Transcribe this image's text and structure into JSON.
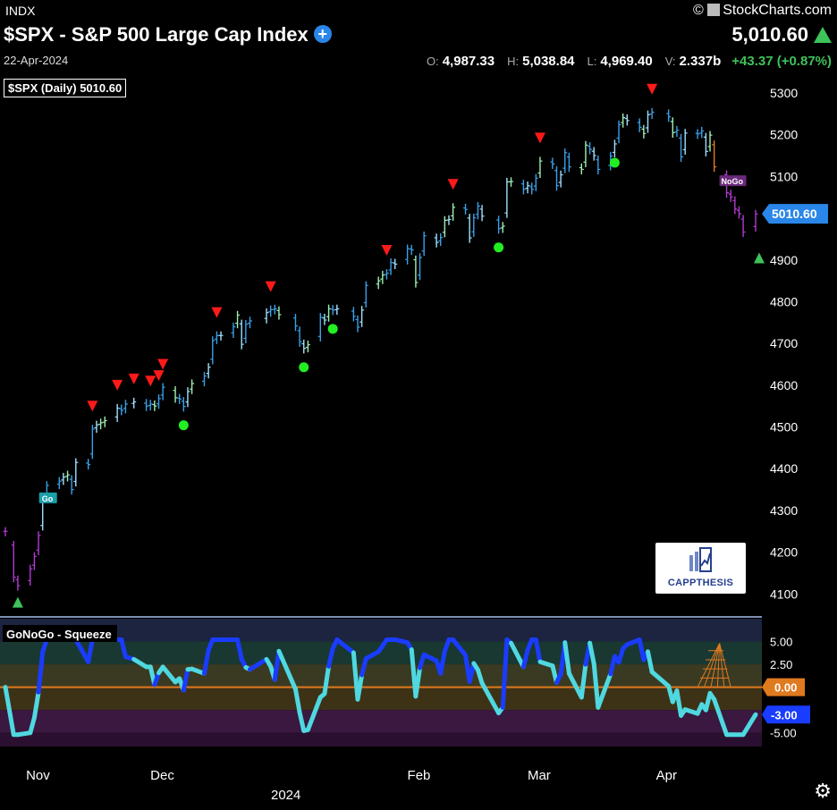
{
  "header": {
    "exchange": "INDX",
    "title": "$SPX - S&P 500 Large Cap Index",
    "date": "22-Apr-2024",
    "brand": "StockCharts.com",
    "last_price": "5,010.60",
    "ohlc": [
      {
        "key": "O:",
        "value": "4,987.33"
      },
      {
        "key": "H:",
        "value": "5,038.84"
      },
      {
        "key": "L:",
        "value": "4,969.40"
      },
      {
        "key": "V:",
        "value": "2.337b"
      }
    ],
    "change": "+43.37 (+0.87%)",
    "chart_label": "$SPX (Daily) 5010.60"
  },
  "logo": {
    "text": "CAPPTHESIS"
  },
  "colors": {
    "bg": "#000000",
    "up": "#3ec25a",
    "red_marker": "#ff1a1a",
    "green_dot": "#22ee22",
    "price_tag": "#2a86e8",
    "squeeze_blue": "#1a3cff",
    "squeeze_cyan": "#4fd8e0",
    "zero_line": "#e07a1f"
  },
  "chart_data": [
    {
      "type": "line",
      "panel": "price",
      "series_name": "$SPX (Daily)",
      "y_ticks": [
        4100,
        4200,
        4300,
        4400,
        4500,
        4600,
        4700,
        4800,
        4900,
        5000,
        5100,
        5200,
        5300
      ],
      "ylim": [
        4060,
        5330
      ],
      "x_ticks": [
        {
          "label": "Nov",
          "date": "2023-11-01"
        },
        {
          "label": "Dec",
          "date": "2023-12-01"
        },
        {
          "label": "Feb",
          "date": "2024-02-01"
        },
        {
          "label": "Mar",
          "date": "2024-03-01"
        },
        {
          "label": "Apr",
          "date": "2024-04-01"
        }
      ],
      "year_label": "2024",
      "last_value_tag": "5010.60",
      "go_label": "Go",
      "nogo_label": "NoGo",
      "closes": [
        {
          "date": "2023-10-24",
          "c": 4250
        },
        {
          "date": "2023-10-26",
          "c": 4140
        },
        {
          "date": "2023-10-27",
          "c": 4120
        },
        {
          "date": "2023-10-30",
          "c": 4160
        },
        {
          "date": "2023-10-31",
          "c": 4190
        },
        {
          "date": "2023-11-01",
          "c": 4240
        },
        {
          "date": "2023-11-02",
          "c": 4320
        },
        {
          "date": "2023-11-03",
          "c": 4360
        },
        {
          "date": "2023-11-06",
          "c": 4370
        },
        {
          "date": "2023-11-07",
          "c": 4380
        },
        {
          "date": "2023-11-08",
          "c": 4385
        },
        {
          "date": "2023-11-09",
          "c": 4350
        },
        {
          "date": "2023-11-10",
          "c": 4415
        },
        {
          "date": "2023-11-13",
          "c": 4410
        },
        {
          "date": "2023-11-14",
          "c": 4495
        },
        {
          "date": "2023-11-15",
          "c": 4505
        },
        {
          "date": "2023-11-16",
          "c": 4510
        },
        {
          "date": "2023-11-17",
          "c": 4515
        },
        {
          "date": "2023-11-20",
          "c": 4545
        },
        {
          "date": "2023-11-21",
          "c": 4540
        },
        {
          "date": "2023-11-22",
          "c": 4555
        },
        {
          "date": "2023-11-24",
          "c": 4560
        },
        {
          "date": "2023-11-27",
          "c": 4550
        },
        {
          "date": "2023-11-28",
          "c": 4555
        },
        {
          "date": "2023-11-29",
          "c": 4550
        },
        {
          "date": "2023-11-30",
          "c": 4568
        },
        {
          "date": "2023-12-01",
          "c": 4595
        },
        {
          "date": "2023-12-04",
          "c": 4570
        },
        {
          "date": "2023-12-05",
          "c": 4567
        },
        {
          "date": "2023-12-06",
          "c": 4549
        },
        {
          "date": "2023-12-07",
          "c": 4585
        },
        {
          "date": "2023-12-08",
          "c": 4604
        },
        {
          "date": "2023-12-11",
          "c": 4622
        },
        {
          "date": "2023-12-12",
          "c": 4643
        },
        {
          "date": "2023-12-13",
          "c": 4707
        },
        {
          "date": "2023-12-14",
          "c": 4719
        },
        {
          "date": "2023-12-15",
          "c": 4719
        },
        {
          "date": "2023-12-18",
          "c": 4740
        },
        {
          "date": "2023-12-19",
          "c": 4768
        },
        {
          "date": "2023-12-20",
          "c": 4698
        },
        {
          "date": "2023-12-21",
          "c": 4746
        },
        {
          "date": "2023-12-22",
          "c": 4754
        },
        {
          "date": "2023-12-26",
          "c": 4774
        },
        {
          "date": "2023-12-27",
          "c": 4781
        },
        {
          "date": "2023-12-28",
          "c": 4783
        },
        {
          "date": "2023-12-29",
          "c": 4769
        },
        {
          "date": "2024-01-02",
          "c": 4742
        },
        {
          "date": "2024-01-03",
          "c": 4704
        },
        {
          "date": "2024-01-04",
          "c": 4688
        },
        {
          "date": "2024-01-05",
          "c": 4697
        },
        {
          "date": "2024-01-08",
          "c": 4763
        },
        {
          "date": "2024-01-09",
          "c": 4756
        },
        {
          "date": "2024-01-10",
          "c": 4783
        },
        {
          "date": "2024-01-11",
          "c": 4780
        },
        {
          "date": "2024-01-12",
          "c": 4783
        },
        {
          "date": "2024-01-16",
          "c": 4765
        },
        {
          "date": "2024-01-17",
          "c": 4739
        },
        {
          "date": "2024-01-18",
          "c": 4780
        },
        {
          "date": "2024-01-19",
          "c": 4839
        },
        {
          "date": "2024-01-22",
          "c": 4850
        },
        {
          "date": "2024-01-23",
          "c": 4864
        },
        {
          "date": "2024-01-24",
          "c": 4868
        },
        {
          "date": "2024-01-25",
          "c": 4894
        },
        {
          "date": "2024-01-26",
          "c": 4890
        },
        {
          "date": "2024-01-29",
          "c": 4927
        },
        {
          "date": "2024-01-30",
          "c": 4924
        },
        {
          "date": "2024-01-31",
          "c": 4846
        },
        {
          "date": "2024-02-01",
          "c": 4906
        },
        {
          "date": "2024-02-02",
          "c": 4958
        },
        {
          "date": "2024-02-05",
          "c": 4942
        },
        {
          "date": "2024-02-06",
          "c": 4954
        },
        {
          "date": "2024-02-07",
          "c": 4995
        },
        {
          "date": "2024-02-08",
          "c": 4997
        },
        {
          "date": "2024-02-09",
          "c": 5026
        },
        {
          "date": "2024-02-12",
          "c": 5021
        },
        {
          "date": "2024-02-13",
          "c": 4953
        },
        {
          "date": "2024-02-14",
          "c": 5001
        },
        {
          "date": "2024-02-15",
          "c": 5029
        },
        {
          "date": "2024-02-16",
          "c": 5005
        },
        {
          "date": "2024-02-20",
          "c": 4975
        },
        {
          "date": "2024-02-21",
          "c": 4981
        },
        {
          "date": "2024-02-22",
          "c": 5087
        },
        {
          "date": "2024-02-23",
          "c": 5088
        },
        {
          "date": "2024-02-26",
          "c": 5069
        },
        {
          "date": "2024-02-27",
          "c": 5078
        },
        {
          "date": "2024-02-28",
          "c": 5069
        },
        {
          "date": "2024-02-29",
          "c": 5096
        },
        {
          "date": "2024-03-01",
          "c": 5137
        },
        {
          "date": "2024-03-04",
          "c": 5130
        },
        {
          "date": "2024-03-05",
          "c": 5078
        },
        {
          "date": "2024-03-06",
          "c": 5104
        },
        {
          "date": "2024-03-07",
          "c": 5157
        },
        {
          "date": "2024-03-08",
          "c": 5123
        },
        {
          "date": "2024-03-11",
          "c": 5117
        },
        {
          "date": "2024-03-12",
          "c": 5175
        },
        {
          "date": "2024-03-13",
          "c": 5165
        },
        {
          "date": "2024-03-14",
          "c": 5150
        },
        {
          "date": "2024-03-15",
          "c": 5117
        },
        {
          "date": "2024-03-18",
          "c": 5149
        },
        {
          "date": "2024-03-19",
          "c": 5178
        },
        {
          "date": "2024-03-20",
          "c": 5224
        },
        {
          "date": "2024-03-21",
          "c": 5241
        },
        {
          "date": "2024-03-22",
          "c": 5234
        },
        {
          "date": "2024-03-25",
          "c": 5218
        },
        {
          "date": "2024-03-26",
          "c": 5203
        },
        {
          "date": "2024-03-27",
          "c": 5248
        },
        {
          "date": "2024-03-28",
          "c": 5254
        },
        {
          "date": "2024-04-01",
          "c": 5243
        },
        {
          "date": "2024-04-02",
          "c": 5205
        },
        {
          "date": "2024-04-03",
          "c": 5211
        },
        {
          "date": "2024-04-04",
          "c": 5147
        },
        {
          "date": "2024-04-05",
          "c": 5204
        },
        {
          "date": "2024-04-08",
          "c": 5202
        },
        {
          "date": "2024-04-09",
          "c": 5209
        },
        {
          "date": "2024-04-10",
          "c": 5160
        },
        {
          "date": "2024-04-11",
          "c": 5199
        },
        {
          "date": "2024-04-12",
          "c": 5123
        },
        {
          "date": "2024-04-15",
          "c": 5061
        },
        {
          "date": "2024-04-16",
          "c": 5051
        },
        {
          "date": "2024-04-17",
          "c": 5022
        },
        {
          "date": "2024-04-18",
          "c": 5011
        },
        {
          "date": "2024-04-19",
          "c": 4967
        },
        {
          "date": "2024-04-22",
          "c": 5010
        }
      ],
      "red_markers": [
        "2023-11-14",
        "2023-11-20",
        "2023-11-24",
        "2023-11-28",
        "2023-11-30",
        "2023-12-01",
        "2023-12-14",
        "2023-12-27",
        "2024-01-24",
        "2024-02-09",
        "2024-03-01",
        "2024-03-28"
      ],
      "green_dots": [
        "2023-12-06",
        "2024-01-04",
        "2024-01-11",
        "2024-02-20",
        "2024-03-19"
      ]
    },
    {
      "type": "line",
      "panel": "indicator",
      "title": "GoNoGo - Squeeze",
      "y_ticks": [
        "5.00",
        "2.50",
        "0.00",
        "-5.00"
      ],
      "zero_tag": "0.00",
      "last_value_tag": "-3.00",
      "ylim": [
        -6.5,
        7.5
      ]
    }
  ]
}
